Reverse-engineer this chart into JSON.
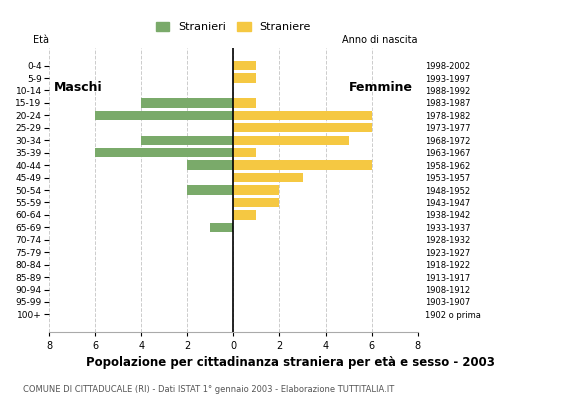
{
  "age_groups": [
    "100+",
    "95-99",
    "90-94",
    "85-89",
    "80-84",
    "75-79",
    "70-74",
    "65-69",
    "60-64",
    "55-59",
    "50-54",
    "45-49",
    "40-44",
    "35-39",
    "30-34",
    "25-29",
    "20-24",
    "15-19",
    "10-14",
    "5-9",
    "0-4"
  ],
  "birth_years": [
    "1902 o prima",
    "1903-1907",
    "1908-1912",
    "1913-1917",
    "1918-1922",
    "1923-1927",
    "1928-1932",
    "1933-1937",
    "1938-1942",
    "1943-1947",
    "1948-1952",
    "1953-1957",
    "1958-1962",
    "1963-1967",
    "1968-1972",
    "1973-1977",
    "1978-1982",
    "1983-1987",
    "1988-1992",
    "1993-1997",
    "1998-2002"
  ],
  "males": [
    0,
    0,
    0,
    0,
    0,
    0,
    0,
    1,
    0,
    0,
    2,
    0,
    2,
    6,
    4,
    0,
    6,
    4,
    0,
    0,
    0
  ],
  "females": [
    0,
    0,
    0,
    0,
    0,
    0,
    0,
    0,
    1,
    2,
    2,
    3,
    6,
    1,
    5,
    6,
    6,
    1,
    0,
    1,
    1
  ],
  "male_color": "#7aaa6a",
  "female_color": "#f5c842",
  "title": "Popolazione per cittadinanza straniera per età e sesso - 2003",
  "subtitle": "COMUNE DI CITTADUCALE (RI) - Dati ISTAT 1° gennaio 2003 - Elaborazione TUTTITALIA.IT",
  "label_eta": "Età",
  "label_maschi": "Maschi",
  "label_femmine": "Femmine",
  "legend_stranieri": "Stranieri",
  "legend_straniere": "Straniere",
  "anno_nascita_label": "Anno di nascita",
  "xlim": 8,
  "background_color": "#ffffff",
  "grid_color": "#cccccc"
}
